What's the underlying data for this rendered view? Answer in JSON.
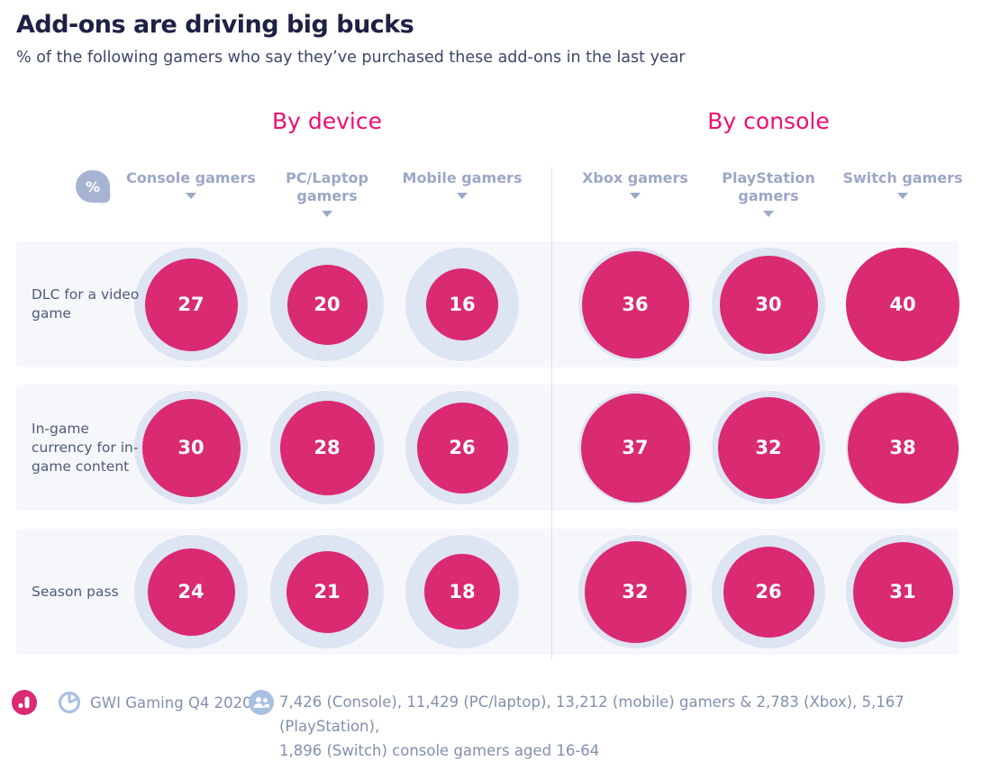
{
  "title": "Add-ons are driving big bucks",
  "subtitle": "% of the following gamers who say they’ve purchased these add-ons in the last year",
  "percent_symbol": "%",
  "groups": [
    {
      "label": "By device"
    },
    {
      "label": "By console"
    }
  ],
  "columns": [
    {
      "label": "Console gamers"
    },
    {
      "label": "PC/Laptop gamers"
    },
    {
      "label": "Mobile gamers"
    },
    {
      "label": "Xbox gamers"
    },
    {
      "label": "PlayStation gamers"
    },
    {
      "label": "Switch gamers"
    }
  ],
  "rows": [
    {
      "label": "DLC for a video game",
      "values": [
        27,
        20,
        16,
        36,
        30,
        40
      ]
    },
    {
      "label": "In-game currency for in-game content",
      "values": [
        30,
        28,
        26,
        37,
        32,
        38
      ]
    },
    {
      "label": "Season pass",
      "values": [
        24,
        21,
        18,
        32,
        26,
        31
      ]
    }
  ],
  "footer": {
    "source": "GWI Gaming Q4 2020",
    "sample_lines": [
      "7,426 (Console), 11,429 (PC/laptop), 13,212 (mobile) gamers & 2,783 (Xbox), 5,167 (PlayStation),",
      "1,896 (Switch) console gamers aged 16-64"
    ]
  },
  "colors": {
    "bubble_pink": "#da2a71",
    "heading_pink": "#ee0f6e",
    "halo_blue": "#dde4f2",
    "band_bg": "#f5f7fb",
    "title_navy": "#1d2145",
    "header_gray_blue": "#9ba8c6",
    "row_label": "#4e5b7a",
    "footer_text": "#8290ad",
    "footer_icon_blue": "#a9c0e2"
  },
  "chart_data": {
    "type": "table",
    "title": "Add-ons are driving big bucks",
    "subtitle": "% of the following gamers who say they’ve purchased these add-ons in the last year",
    "unit": "%",
    "encoding": "circle area proportional to value",
    "column_groups": [
      {
        "label": "By device",
        "columns": [
          "Console gamers",
          "PC/Laptop gamers",
          "Mobile gamers"
        ]
      },
      {
        "label": "By console",
        "columns": [
          "Xbox gamers",
          "PlayStation gamers",
          "Switch gamers"
        ]
      }
    ],
    "categories": [
      "DLC for a video game",
      "In-game currency for in-game content",
      "Season pass"
    ],
    "series": [
      {
        "name": "Console gamers",
        "values": [
          27,
          30,
          24
        ]
      },
      {
        "name": "PC/Laptop gamers",
        "values": [
          20,
          28,
          21
        ]
      },
      {
        "name": "Mobile gamers",
        "values": [
          16,
          26,
          18
        ]
      },
      {
        "name": "Xbox gamers",
        "values": [
          36,
          37,
          32
        ]
      },
      {
        "name": "PlayStation gamers",
        "values": [
          30,
          32,
          26
        ]
      },
      {
        "name": "Switch gamers",
        "values": [
          40,
          38,
          31
        ]
      }
    ],
    "source": "GWI Gaming Q4 2020",
    "sample": "7,426 (Console), 11,429 (PC/laptop), 13,212 (mobile) gamers & 2,783 (Xbox), 5,167 (PlayStation), 1,896 (Switch) console gamers aged 16-64"
  }
}
